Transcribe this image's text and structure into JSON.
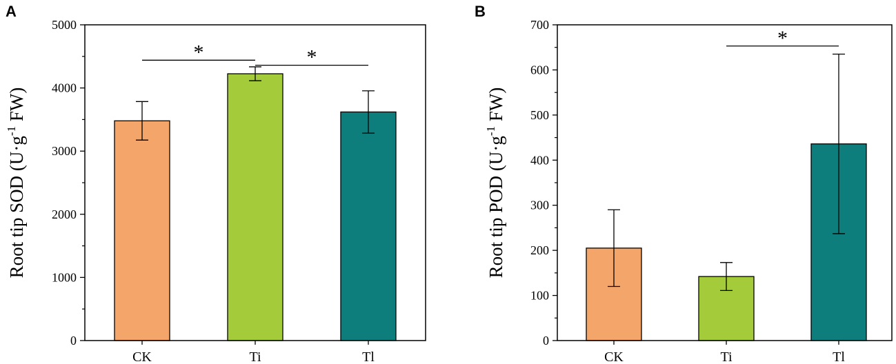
{
  "colors": {
    "CK": "#F4A66A",
    "Ti": "#A4CC3A",
    "Tl": "#0E7E7C",
    "stroke": "#000000"
  },
  "chart_data": [
    {
      "panel": "A",
      "type": "bar",
      "categories": [
        "CK",
        "Ti",
        "Tl"
      ],
      "values": [
        3480,
        4225,
        3620
      ],
      "errors": [
        305,
        110,
        335
      ],
      "ylabel": "Root tip SOD (U·g⁻¹ FW)",
      "ylabel_main": "Root tip SOD (U·g",
      "ylabel_sup": "-1",
      "ylabel_end": " FW)",
      "ylim": [
        0,
        5000
      ],
      "yticks": [
        "0",
        "1000",
        "2000",
        "3000",
        "4000",
        "5000"
      ],
      "significance": [
        {
          "from": 0,
          "to": 1,
          "y": 4440,
          "label": "*"
        },
        {
          "from": 1,
          "to": 2,
          "y": 4360,
          "label": "*"
        }
      ]
    },
    {
      "panel": "B",
      "type": "bar",
      "categories": [
        "CK",
        "Ti",
        "Tl"
      ],
      "values": [
        205,
        142,
        436
      ],
      "errors": [
        85,
        31,
        199
      ],
      "ylabel": "Root tip POD (U·g⁻¹ FW)",
      "ylabel_main": "Root tip POD (U·g",
      "ylabel_sup": "-1",
      "ylabel_end": " FW)",
      "ylim": [
        0,
        700
      ],
      "yticks": [
        "0",
        "100",
        "200",
        "300",
        "400",
        "500",
        "600",
        "700"
      ],
      "significance": [
        {
          "from": 1,
          "to": 2,
          "y": 653,
          "label": "*"
        }
      ]
    }
  ]
}
